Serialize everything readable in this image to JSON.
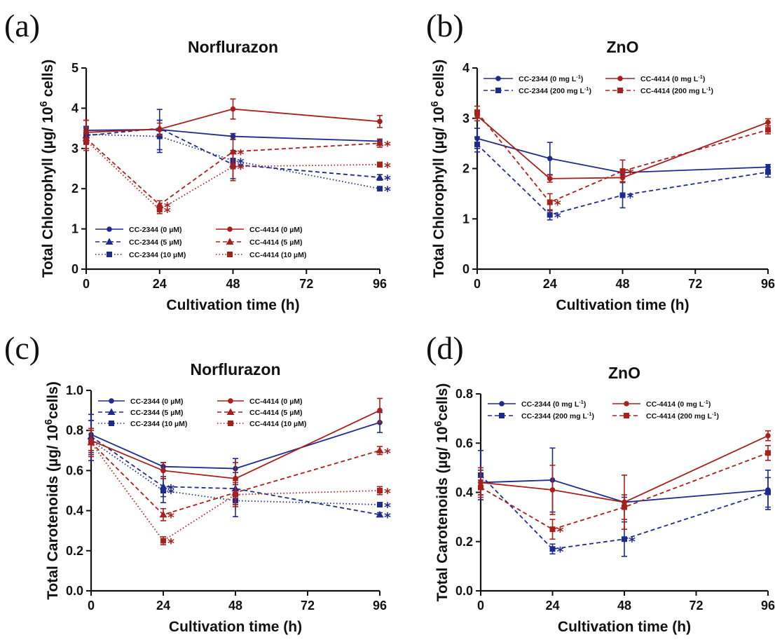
{
  "colors": {
    "blue": "#1f2b8c",
    "red": "#a8201c",
    "axis": "#111111"
  },
  "xlabel": "Cultivation time (h)",
  "chart_data": [
    {
      "panel": "(a)",
      "type": "line",
      "title": "Norflurazon",
      "xlabel": "Cultivation time (h)",
      "ylabel": "Total Chlorophyll (µg/ 10",
      "ylabel_sup": "6",
      "ylabel_tail": " cells)",
      "x": [
        0,
        24,
        48,
        96
      ],
      "xlim": [
        0,
        96
      ],
      "xticks": [
        "0",
        "24",
        "48",
        "72",
        "96"
      ],
      "ylim": [
        0,
        5
      ],
      "yticks": [
        "0",
        "1",
        "2",
        "3",
        "4",
        "5"
      ],
      "legend": "bottom",
      "series": [
        {
          "name": "CC-2344  (0 µM)",
          "color": "blue",
          "dash": "solid",
          "marker": "circle",
          "values": [
            3.45,
            3.47,
            3.3,
            3.18
          ],
          "err": [
            0.25,
            0.5,
            0.07,
            0.05
          ],
          "stars": [
            false,
            false,
            false,
            false
          ]
        },
        {
          "name": "CC-2344  (5 µM)",
          "color": "blue",
          "dash": "dashed",
          "marker": "triangle",
          "values": [
            3.32,
            3.5,
            2.6,
            2.28
          ],
          "err": [
            0.2,
            0.2,
            0.35,
            0.07
          ],
          "stars": [
            false,
            false,
            true,
            true
          ]
        },
        {
          "name": "CC-2344  (10 µM)",
          "color": "blue",
          "dash": "dotted",
          "marker": "square",
          "values": [
            3.35,
            3.3,
            2.7,
            2.0
          ],
          "err": [
            0.2,
            0.4,
            0.2,
            0.04
          ],
          "stars": [
            false,
            false,
            true,
            true
          ]
        },
        {
          "name": "CC-4414  (0 µM)",
          "color": "red",
          "dash": "solid",
          "marker": "circle",
          "values": [
            3.4,
            3.48,
            3.98,
            3.67
          ],
          "err": [
            0.3,
            0.15,
            0.25,
            0.15
          ],
          "stars": [
            false,
            false,
            false,
            false
          ]
        },
        {
          "name": "CC-4414  (5 µM)",
          "color": "red",
          "dash": "dashed",
          "marker": "triangle",
          "values": [
            3.25,
            1.6,
            2.92,
            3.13
          ],
          "err": [
            0.25,
            0.1,
            0.3,
            0.1
          ],
          "stars": [
            false,
            true,
            true,
            true
          ]
        },
        {
          "name": "CC-4414  (10 µM)",
          "color": "red",
          "dash": "dotted",
          "marker": "square",
          "values": [
            3.2,
            1.48,
            2.55,
            2.6
          ],
          "err": [
            0.25,
            0.1,
            0.35,
            0.06
          ],
          "stars": [
            false,
            true,
            true,
            true
          ]
        }
      ]
    },
    {
      "panel": "(b)",
      "type": "line",
      "title": "ZnO",
      "xlabel": "Cultivation time (h)",
      "ylabel": "Total Chlorophyll (µg/ 10",
      "ylabel_sup": "6",
      "ylabel_tail": " cells)",
      "x": [
        0,
        24,
        48,
        96
      ],
      "xlim": [
        0,
        96
      ],
      "xticks": [
        "0",
        "24",
        "48",
        "72",
        "96"
      ],
      "ylim": [
        0,
        4
      ],
      "yticks": [
        "0",
        "1",
        "2",
        "3",
        "4"
      ],
      "legend": "top",
      "series": [
        {
          "name": "CC-2344 (0 mg L",
          "unit_sup": "-1",
          "color": "blue",
          "dash": "solid",
          "marker": "circle",
          "values": [
            2.6,
            2.2,
            1.92,
            2.03
          ],
          "err": [
            0.2,
            0.32,
            0.05,
            0.05
          ],
          "stars": [
            false,
            false,
            false,
            false
          ]
        },
        {
          "name": "CC-2344 (200 mg L",
          "unit_sup": "-1",
          "color": "blue",
          "dash": "dashed",
          "marker": "square",
          "values": [
            2.48,
            1.08,
            1.47,
            1.93
          ],
          "err": [
            0.15,
            0.1,
            0.25,
            0.1
          ],
          "stars": [
            false,
            true,
            true,
            false
          ]
        },
        {
          "name": "CC-4414 (0 mg L",
          "unit_sup": "-1",
          "color": "red",
          "dash": "solid",
          "marker": "circle",
          "values": [
            3.05,
            1.8,
            1.82,
            2.92
          ],
          "err": [
            0.1,
            0.07,
            0.08,
            0.07
          ],
          "stars": [
            false,
            false,
            false,
            false
          ]
        },
        {
          "name": "CC-4414 (200 mg L",
          "unit_sup": "-1",
          "color": "red",
          "dash": "dashed",
          "marker": "square",
          "values": [
            3.12,
            1.33,
            1.95,
            2.77
          ],
          "err": [
            0.12,
            0.17,
            0.22,
            0.08
          ],
          "stars": [
            false,
            true,
            true,
            false
          ]
        }
      ]
    },
    {
      "panel": "(c)",
      "type": "line",
      "title": "Norflurazon",
      "xlabel": "Cultivation time (h)",
      "ylabel": "Total Carotenoids (µg/ 10",
      "ylabel_sup": "6",
      "ylabel_tail": "cells)",
      "x": [
        0,
        24,
        48,
        96
      ],
      "xlim": [
        0,
        96
      ],
      "xticks": [
        "0",
        "24",
        "48",
        "72",
        "96"
      ],
      "ylim": [
        0,
        1.0
      ],
      "yticks": [
        "0.0",
        "0.2",
        "0.4",
        "0.6",
        "0.8",
        "1.0"
      ],
      "legend": "top",
      "series": [
        {
          "name": "CC-2344  (0 µM)",
          "color": "blue",
          "dash": "solid",
          "marker": "circle",
          "values": [
            0.78,
            0.62,
            0.61,
            0.84
          ],
          "err": [
            0.1,
            0.02,
            0.05,
            0.05
          ],
          "stars": [
            false,
            false,
            false,
            false
          ]
        },
        {
          "name": "CC-2344  (5 µM)",
          "color": "blue",
          "dash": "dashed",
          "marker": "triangle",
          "values": [
            0.77,
            0.52,
            0.51,
            0.38
          ],
          "err": [
            0.08,
            0.05,
            0.08,
            0.01
          ],
          "stars": [
            false,
            true,
            false,
            true
          ]
        },
        {
          "name": "CC-2344  (10 µM)",
          "color": "blue",
          "dash": "dotted",
          "marker": "square",
          "values": [
            0.75,
            0.5,
            0.45,
            0.43
          ],
          "err": [
            0.1,
            0.06,
            0.08,
            0.01
          ],
          "stars": [
            false,
            true,
            false,
            true
          ]
        },
        {
          "name": "CC-4414  (0 µM)",
          "color": "red",
          "dash": "solid",
          "marker": "circle",
          "values": [
            0.75,
            0.6,
            0.56,
            0.9
          ],
          "err": [
            0.05,
            0.04,
            0.08,
            0.06
          ],
          "stars": [
            false,
            false,
            false,
            false
          ]
        },
        {
          "name": "CC-4414  (5 µM)",
          "color": "red",
          "dash": "dashed",
          "marker": "triangle",
          "values": [
            0.74,
            0.38,
            0.49,
            0.7
          ],
          "err": [
            0.07,
            0.03,
            0.06,
            0.02
          ],
          "stars": [
            false,
            true,
            false,
            true
          ]
        },
        {
          "name": "CC-4414  (10 µM)",
          "color": "red",
          "dash": "dotted",
          "marker": "square",
          "values": [
            0.74,
            0.25,
            0.48,
            0.5
          ],
          "err": [
            0.07,
            0.02,
            0.06,
            0.02
          ],
          "stars": [
            false,
            true,
            false,
            true
          ]
        }
      ]
    },
    {
      "panel": "(d)",
      "type": "line",
      "title": "ZnO",
      "xlabel": "Cultivation time (h)",
      "ylabel": "Total Carotenoids (µg/ 10",
      "ylabel_sup": "6",
      "ylabel_tail": "cells)",
      "x": [
        0,
        24,
        48,
        96
      ],
      "xlim": [
        0,
        96
      ],
      "xticks": [
        "0",
        "24",
        "48",
        "72",
        "96"
      ],
      "ylim": [
        0,
        0.8
      ],
      "yticks": [
        "0.0",
        "0.2",
        "0.4",
        "0.6",
        "0.8"
      ],
      "legend": "top",
      "series": [
        {
          "name": "CC-2344 (0 mg L",
          "unit_sup": "-1",
          "color": "blue",
          "dash": "solid",
          "marker": "circle",
          "values": [
            0.44,
            0.45,
            0.36,
            0.41
          ],
          "err": [
            0.05,
            0.13,
            0.02,
            0.08
          ],
          "stars": [
            false,
            false,
            false,
            false
          ]
        },
        {
          "name": "CC-2344 (200 mg L",
          "unit_sup": "-1",
          "color": "blue",
          "dash": "dashed",
          "marker": "square",
          "values": [
            0.47,
            0.17,
            0.21,
            0.4
          ],
          "err": [
            0.1,
            0.02,
            0.07,
            0.06
          ],
          "stars": [
            false,
            true,
            true,
            false
          ]
        },
        {
          "name": "CC-4414 (0 mg L",
          "unit_sup": "-1",
          "color": "red",
          "dash": "solid",
          "marker": "circle",
          "values": [
            0.44,
            0.41,
            0.36,
            0.63
          ],
          "err": [
            0.06,
            0.1,
            0.11,
            0.02
          ],
          "stars": [
            false,
            false,
            false,
            false
          ]
        },
        {
          "name": "CC-4414 (200 mg L",
          "unit_sup": "-1",
          "color": "red",
          "dash": "dashed",
          "marker": "square",
          "values": [
            0.42,
            0.25,
            0.34,
            0.56
          ],
          "err": [
            0.03,
            0.04,
            0.05,
            0.03
          ],
          "stars": [
            false,
            true,
            false,
            false
          ]
        }
      ]
    }
  ]
}
